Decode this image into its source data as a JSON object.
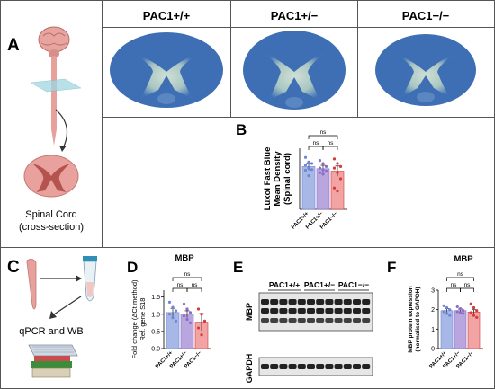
{
  "panels": {
    "A": "A",
    "B": "B",
    "C": "C",
    "D": "D",
    "E": "E",
    "F": "F"
  },
  "genotypes": [
    "PAC1+/+",
    "PAC1+/−",
    "PAC1−/−"
  ],
  "left_top_caption": [
    "Spinal Cord",
    "(cross-section)"
  ],
  "left_bottom_caption": "qPCR and WB",
  "colors": {
    "wt": "#a8b8e6",
    "het": "#b9a6df",
    "ko": "#f2a3a3",
    "wt_dot": "#6f86d6",
    "het_dot": "#8a6ec9",
    "ko_dot": "#d83a3a",
    "border": "#555555",
    "blot_band": "#222222"
  },
  "icons": [
    "brain-with-spinal-cord-icon",
    "spinal-cord-section-icon",
    "tissue-sample-icon",
    "microtube-icon",
    "pcr-plate-icon",
    "western-blot-icon"
  ],
  "micrographs": [
    "spinal-section-wt",
    "spinal-section-het",
    "spinal-section-ko"
  ],
  "sig_label": "ns",
  "chart_data": [
    {
      "id": "B",
      "type": "bar",
      "ylabel": "Luxol Fast Blue\nMean Density\n(Spinal cord)",
      "categories": [
        "PAC1+/+",
        "PAC1+/−",
        "PAC1−/−"
      ],
      "values": [
        140,
        133,
        125
      ],
      "errors": [
        12,
        11,
        17
      ],
      "points": [
        [
          170,
          155,
          150,
          145,
          135,
          130,
          128,
          110
        ],
        [
          160,
          150,
          140,
          135,
          130,
          125,
          120,
          115
        ],
        [
          165,
          150,
          140,
          135,
          120,
          100,
          70,
          60
        ]
      ],
      "ylim": [
        0,
        200
      ],
      "comparisons": [
        "ns",
        "ns",
        "ns"
      ]
    },
    {
      "id": "D",
      "type": "bar",
      "title": "MBP",
      "ylabel": "Fold change (ΔCt method)\nRef. gene S18",
      "yticks": [
        "0.0",
        "0.5",
        "1.0",
        "1.5"
      ],
      "categories": [
        "PAC1+/+",
        "PAC1+/−",
        "PAC1−/−"
      ],
      "values": [
        1.05,
        1.0,
        0.77
      ],
      "errors": [
        0.12,
        0.1,
        0.25
      ],
      "points": [
        [
          1.35,
          1.2,
          1.1,
          1.0,
          0.9,
          0.8
        ],
        [
          1.3,
          1.15,
          1.05,
          0.95,
          0.85,
          0.75
        ],
        [
          1.15,
          1.0,
          0.8,
          0.6,
          0.4
        ]
      ],
      "ylim": [
        0,
        1.7
      ],
      "comparisons": [
        "ns",
        "ns",
        "ns"
      ]
    },
    {
      "id": "F",
      "type": "bar",
      "title": "MBP",
      "ylabel": "MBP protein expression\n(normalised to GAPDH)",
      "yticks": [
        "0",
        "1",
        "2",
        "3"
      ],
      "categories": [
        "PAC1+/+",
        "PAC1+/−",
        "PAC1−/−"
      ],
      "values": [
        1.95,
        1.95,
        1.88
      ],
      "errors": [
        0.1,
        0.08,
        0.12
      ],
      "points": [
        [
          2.2,
          2.1,
          2.0,
          1.9,
          1.8,
          1.7
        ],
        [
          2.15,
          2.05,
          1.95,
          1.9,
          1.85,
          1.8
        ],
        [
          2.3,
          2.1,
          1.95,
          1.85,
          1.7,
          1.6
        ]
      ],
      "ylim": [
        0,
        3
      ],
      "comparisons": [
        "ns",
        "ns",
        "ns"
      ]
    }
  ],
  "blot": {
    "group_labels": [
      "PAC1+/+",
      "PAC1+/−",
      "PAC1−/−"
    ],
    "rows": [
      "MBP",
      "GAPDH"
    ]
  }
}
